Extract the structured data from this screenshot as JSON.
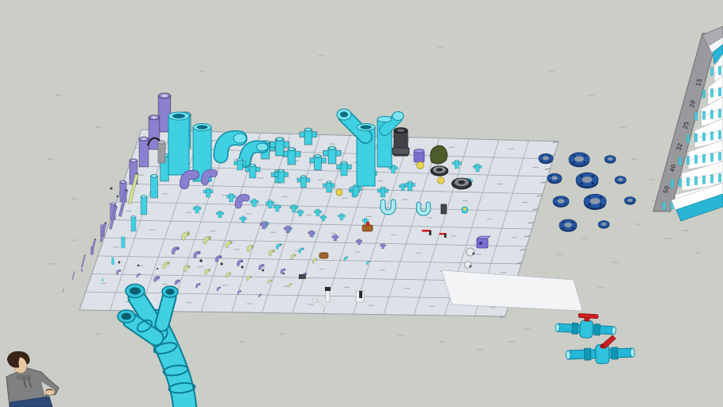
{
  "viewport": {
    "background_color": "#cbcdc7",
    "floor_tile_color": "#dde2e8",
    "floor_line_color": "#9aa0a8",
    "sheet_color": "#f2f4f6"
  },
  "palette": {
    "pipe_cyan": "#3fd0e2",
    "pipe_cyan_dark": "#0f8ca4",
    "pipe_cyan_light": "#9feef5",
    "pipe_purple": "#8b80d0",
    "pipe_purple_dark": "#5b50a8",
    "pipe_green": "#cfe18e",
    "pipe_green_dark": "#8fa84e",
    "pipe_dark_gray": "#414246",
    "boulder_olive": "#4d5c2b",
    "flange_blue": "#2456a4",
    "flange_blue_dark": "#16386e",
    "valve_red": "#cf1f1f",
    "copper": "#a0622a",
    "shelf_gray": "#97999c",
    "shelf_cyan": "#29b6d4",
    "figure_hoodie": "#7f8081",
    "figure_jeans": "#2e4a78",
    "figure_skin": "#e9c9a4",
    "figure_hair": "#3a2418"
  },
  "shelf": {
    "tier_labels": [
      "15",
      "20",
      "25",
      "32",
      "40",
      "50"
    ]
  },
  "objects": [
    "fitting-grid-floor",
    "pipe-fitting-rows",
    "large-cyan-cylinders",
    "wye-fitting-stack",
    "dark-riser-pipe",
    "olive-boulder",
    "dark-flanges",
    "blue-flange-set",
    "white-ground-sheet",
    "fitting-rack-shelf",
    "ball-valve-large",
    "ball-valve-lever",
    "branching-pipe-assembly",
    "scale-figure"
  ]
}
